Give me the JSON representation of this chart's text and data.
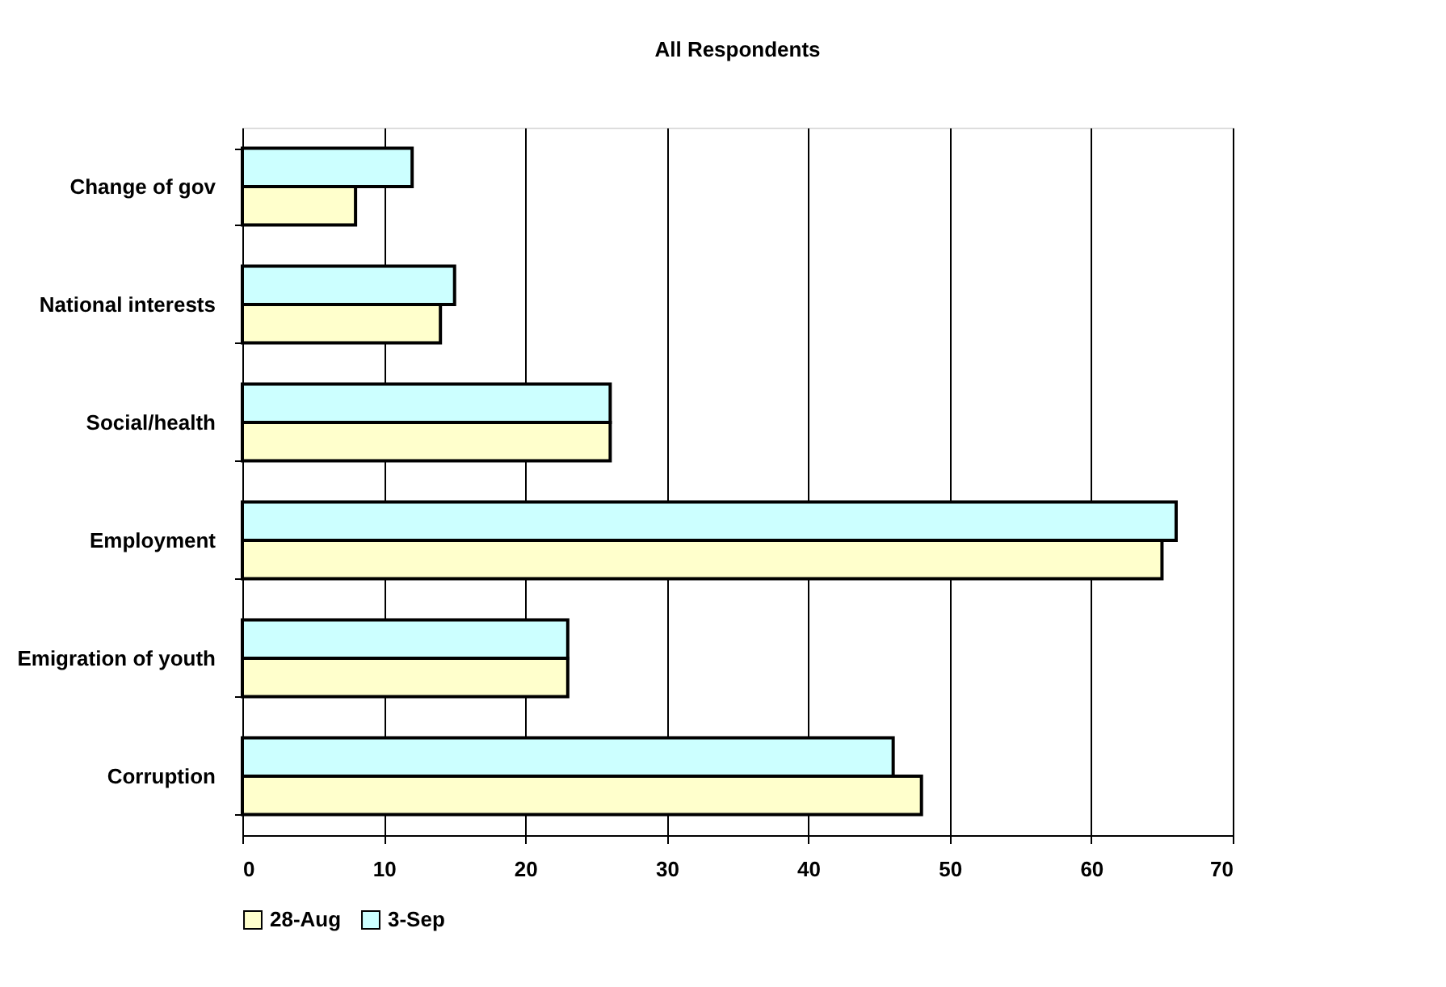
{
  "chart_data": {
    "type": "bar",
    "orientation": "horizontal",
    "title": "All Respondents",
    "categories": [
      "Change of gov",
      "National interests",
      "Social/health",
      "Employment",
      "Emigration of youth",
      "Corruption"
    ],
    "series": [
      {
        "name": "28-Aug",
        "color": "#ffffcc",
        "values": [
          8,
          14,
          26,
          65,
          23,
          48
        ]
      },
      {
        "name": "3-Sep",
        "color": "#ccffff",
        "values": [
          12,
          15,
          26,
          66,
          23,
          46
        ]
      }
    ],
    "xlim": [
      0,
      70
    ],
    "xticks": [
      0,
      10,
      20,
      30,
      40,
      50,
      60,
      70
    ],
    "grid": "x",
    "legend": "bottom"
  }
}
